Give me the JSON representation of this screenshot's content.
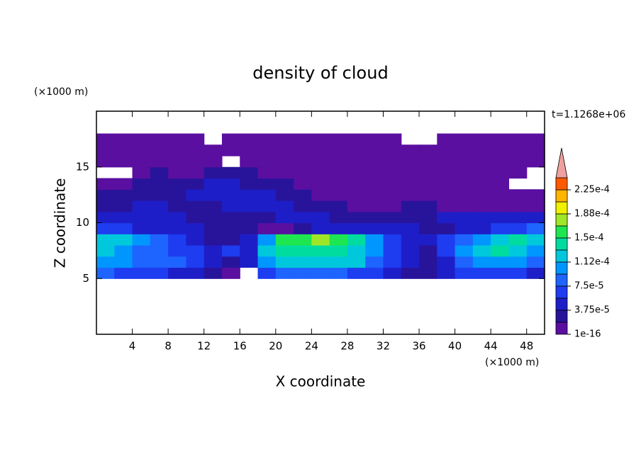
{
  "chart_data": {
    "type": "contour",
    "title": "density of cloud",
    "xlabel": "X coordinate",
    "ylabel": "Z coordinate",
    "x_unit": "(×1000 m)",
    "y_unit": "(×1000 m)",
    "time_label": "t=1.1268e+06",
    "xlim": [
      0,
      50
    ],
    "ylim": [
      0,
      20
    ],
    "xticks": [
      4,
      8,
      12,
      16,
      20,
      24,
      28,
      32,
      36,
      40,
      44,
      48
    ],
    "yticks": [
      5,
      10,
      15
    ],
    "x": [
      1,
      3,
      5,
      7,
      9,
      11,
      13,
      15,
      17,
      19,
      21,
      23,
      25,
      27,
      29,
      31,
      33,
      35,
      37,
      39,
      41,
      43,
      45,
      47,
      49
    ],
    "z": [
      5.5,
      6.5,
      7.5,
      8.5,
      9.5,
      10.5,
      11.5,
      12.5,
      13.5,
      14.5,
      15.5,
      16.5,
      17.5
    ],
    "field": [
      [
        8e-05,
        6e-05,
        6e-05,
        6e-05,
        4e-05,
        4e-05,
        2.5e-05,
        2e-06,
        null,
        6e-05,
        8e-05,
        8e-05,
        8e-05,
        8e-05,
        6e-05,
        6e-05,
        4e-05,
        2.5e-05,
        2.5e-05,
        4e-05,
        6e-05,
        6e-05,
        6e-05,
        6e-05,
        4e-05
      ],
      [
        0.0001,
        0.0001,
        8e-05,
        8e-05,
        8e-05,
        6e-05,
        4e-05,
        2.5e-05,
        4e-05,
        0.0001,
        0.00012,
        0.00012,
        0.00012,
        0.00012,
        0.00012,
        8e-05,
        6e-05,
        4e-05,
        2.5e-05,
        4e-05,
        8e-05,
        0.0001,
        0.0001,
        0.0001,
        8e-05
      ],
      [
        0.00012,
        0.0001,
        8e-05,
        8e-05,
        6e-05,
        6e-05,
        4e-05,
        6e-05,
        4e-05,
        0.00012,
        0.00014,
        0.00014,
        0.00014,
        0.00014,
        0.00012,
        0.0001,
        6e-05,
        4e-05,
        2.5e-05,
        6e-05,
        0.0001,
        0.00012,
        0.00014,
        0.00012,
        0.0001
      ],
      [
        0.00012,
        0.00012,
        0.0001,
        8e-05,
        6e-05,
        4e-05,
        2.5e-05,
        2.5e-05,
        4e-05,
        0.0001,
        0.00016,
        0.00016,
        0.00018,
        0.00016,
        0.00014,
        0.0001,
        6e-05,
        4e-05,
        4e-05,
        6e-05,
        8e-05,
        0.0001,
        0.00012,
        0.00014,
        0.00012
      ],
      [
        6e-05,
        6e-05,
        4e-05,
        4e-05,
        4e-05,
        4e-05,
        2.5e-05,
        2.5e-05,
        2.5e-05,
        2e-06,
        2e-06,
        2.5e-05,
        4e-05,
        4e-05,
        4e-05,
        4e-05,
        4e-05,
        4e-05,
        2.5e-05,
        2.5e-05,
        4e-05,
        4e-05,
        6e-05,
        6e-05,
        8e-05
      ],
      [
        4e-05,
        4e-05,
        4e-05,
        4e-05,
        4e-05,
        2.5e-05,
        2.5e-05,
        2.5e-05,
        2.5e-05,
        2.5e-05,
        4e-05,
        4e-05,
        4e-05,
        2.5e-05,
        2.5e-05,
        2.5e-05,
        2.5e-05,
        2.5e-05,
        2.5e-05,
        4e-05,
        4e-05,
        4e-05,
        4e-05,
        4e-05,
        4e-05
      ],
      [
        2.5e-05,
        2.5e-05,
        4e-05,
        4e-05,
        2.5e-05,
        2.5e-05,
        2.5e-05,
        4e-05,
        4e-05,
        4e-05,
        4e-05,
        2.5e-05,
        2.5e-05,
        2.5e-05,
        2e-06,
        2e-06,
        2e-06,
        2.5e-05,
        2.5e-05,
        2e-06,
        2e-06,
        2e-06,
        2e-06,
        2e-06,
        2e-06
      ],
      [
        2.5e-05,
        2.5e-05,
        2.5e-05,
        2.5e-05,
        2.5e-05,
        4e-05,
        4e-05,
        4e-05,
        4e-05,
        4e-05,
        2.5e-05,
        2.5e-05,
        2e-06,
        2e-06,
        2e-06,
        2e-06,
        2e-06,
        2e-06,
        2e-06,
        2e-06,
        2e-06,
        2e-06,
        2e-06,
        2e-06,
        2e-06
      ],
      [
        2e-06,
        2e-06,
        2.5e-05,
        2.5e-05,
        2.5e-05,
        2.5e-05,
        4e-05,
        4e-05,
        2.5e-05,
        2.5e-05,
        2.5e-05,
        2e-06,
        2e-06,
        2e-06,
        2e-06,
        2e-06,
        2e-06,
        2e-06,
        2e-06,
        2e-06,
        2e-06,
        2e-06,
        2e-06,
        null,
        null
      ],
      [
        null,
        null,
        2e-06,
        2.5e-05,
        2e-06,
        2e-06,
        2.5e-05,
        2.5e-05,
        2.5e-05,
        2e-06,
        2e-06,
        2e-06,
        2e-06,
        2e-06,
        2e-06,
        2e-06,
        2e-06,
        2e-06,
        2e-06,
        2e-06,
        2e-06,
        2e-06,
        2e-06,
        2e-06,
        null
      ],
      [
        2e-06,
        2e-06,
        2e-06,
        2e-06,
        2e-06,
        2e-06,
        2e-06,
        null,
        2e-06,
        2e-06,
        2e-06,
        2e-06,
        2e-06,
        2e-06,
        2e-06,
        2e-06,
        2e-06,
        2e-06,
        2e-06,
        2e-06,
        2e-06,
        2e-06,
        2e-06,
        2e-06,
        2e-06
      ],
      [
        2e-06,
        2e-06,
        2e-06,
        2e-06,
        2e-06,
        2e-06,
        2e-06,
        2e-06,
        2e-06,
        2e-06,
        2e-06,
        2e-06,
        2e-06,
        2e-06,
        2e-06,
        2e-06,
        2e-06,
        2e-06,
        2e-06,
        2e-06,
        2e-06,
        2e-06,
        2e-06,
        2e-06,
        2e-06
      ],
      [
        2e-06,
        2e-06,
        2e-06,
        2e-06,
        2e-06,
        2e-06,
        null,
        2e-06,
        2e-06,
        2e-06,
        2e-06,
        2e-06,
        2e-06,
        2e-06,
        2e-06,
        2e-06,
        2e-06,
        null,
        null,
        2e-06,
        2e-06,
        2e-06,
        2e-06,
        2e-06,
        2e-06
      ]
    ],
    "levels": [
      1e-16,
      1.875e-05,
      3.75e-05,
      5.625e-05,
      7.5e-05,
      9.375e-05,
      0.0001125,
      0.00013125,
      0.00015,
      0.00016875,
      0.0001875,
      0.00020625,
      0.000225
    ],
    "colors": [
      "#5a0fa0",
      "#28149b",
      "#1e1ec8",
      "#1e3cf0",
      "#1e64ff",
      "#0096ff",
      "#00c8dc",
      "#00dca0",
      "#1ee650",
      "#a0e628",
      "#f0f000",
      "#ffb400",
      "#ff5a00"
    ],
    "overflow_color": "#f0a0a0",
    "clim": [
      1e-16,
      0.00024375
    ],
    "colorbar_ticks": [
      {
        "value": 1e-16,
        "label": "1e-16"
      },
      {
        "value": 3.75e-05,
        "label": "3.75e-5"
      },
      {
        "value": 7.5e-05,
        "label": "7.5e-5"
      },
      {
        "value": 0.0001125,
        "label": "1.12e-4"
      },
      {
        "value": 0.00015,
        "label": "1.5e-4"
      },
      {
        "value": 0.0001875,
        "label": "1.88e-4"
      },
      {
        "value": 0.000225,
        "label": "2.25e-4"
      }
    ]
  }
}
